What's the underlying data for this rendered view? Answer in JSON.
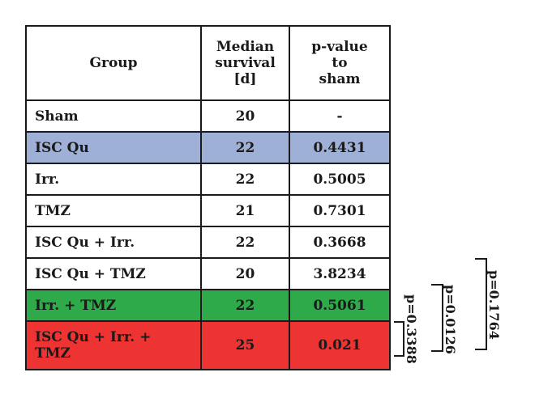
{
  "table": {
    "headers": {
      "group": "Group",
      "median_lines": [
        "Median",
        "survival",
        "[d]"
      ],
      "pvalue_lines": [
        "p-value",
        "to",
        "sham"
      ]
    },
    "rows": [
      {
        "group": "Sham",
        "median": "20",
        "pvalue": "-"
      },
      {
        "group": "ISC Qu",
        "median": "22",
        "pvalue": "0.4431"
      },
      {
        "group": "Irr.",
        "median": "22",
        "pvalue": "0.5005"
      },
      {
        "group": "TMZ",
        "median": "21",
        "pvalue": "0.7301"
      },
      {
        "group": "ISC Qu + Irr.",
        "median": "22",
        "pvalue": "0.3668"
      },
      {
        "group": "ISC Qu + TMZ",
        "median": "20",
        "pvalue": "3.8234"
      },
      {
        "group": "Irr. + TMZ",
        "median": "22",
        "pvalue": "0.5061"
      },
      {
        "group_lines": [
          "ISC Qu + Irr. +",
          "TMZ"
        ],
        "median": "25",
        "pvalue": "0.021"
      }
    ],
    "row_colors": {
      "isc_qu": "#9fb0d6",
      "irr_tmz": "#2eaa4a",
      "combo": "#ee3333"
    }
  },
  "brackets": [
    {
      "label": "p=0.3388"
    },
    {
      "label": "p=0.0126"
    },
    {
      "label": "p=0.1764"
    }
  ]
}
